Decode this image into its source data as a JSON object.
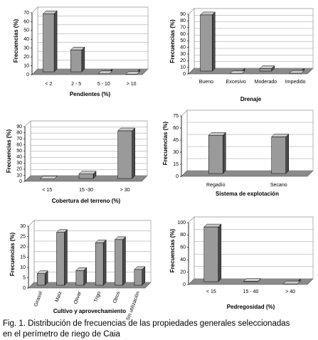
{
  "chart_data": [
    {
      "type": "bar3d",
      "ylabel": "Frecuencias (%)",
      "xlabel": "Pendientes (%)",
      "categories": [
        "< 2",
        "2 - 5",
        "5 - 10",
        "> 10"
      ],
      "values": [
        69,
        28,
        1,
        0.5
      ],
      "ylim": [
        0,
        70
      ],
      "yticks": [
        0,
        10,
        20,
        30,
        40,
        50,
        60,
        70
      ],
      "color": "#9a9a9a",
      "grid": true
    },
    {
      "type": "bar3d",
      "ylabel": "Frecuencias (%)",
      "xlabel": "Drenaje",
      "categories": [
        "Bueno",
        "Excesivo",
        "Moderado",
        "Impedido"
      ],
      "values": [
        89,
        0.5,
        8,
        1
      ],
      "ylim": [
        0,
        90
      ],
      "yticks": [
        0,
        10,
        20,
        30,
        40,
        50,
        60,
        70,
        80,
        90
      ],
      "color": "#9a9a9a",
      "grid": true
    },
    {
      "type": "bar3d",
      "ylabel": "Frecuencias (%)",
      "xlabel": "Cobertura del terreno (%)",
      "categories": [
        "< 15",
        "15 -30",
        "> 30"
      ],
      "values": [
        4,
        12,
        83
      ],
      "ylim": [
        0,
        90
      ],
      "yticks": [
        0,
        10,
        20,
        30,
        40,
        50,
        60,
        70,
        80,
        90
      ],
      "color": "#9a9a9a",
      "grid": true
    },
    {
      "type": "bar3d",
      "ylabel": "Frecuencias (%)",
      "xlabel": "Sistema de explotación",
      "categories": [
        "Regadío",
        "Secano"
      ],
      "values": [
        51,
        49
      ],
      "ylim": [
        0,
        75
      ],
      "yticks": [
        0,
        15,
        30,
        45,
        60,
        75
      ],
      "color": "#9a9a9a",
      "grid": true
    },
    {
      "type": "bar3d",
      "ylabel": "Frecuencias (%)",
      "xlabel": "Cultivo y aprovechamiento",
      "categories": [
        "Girasol",
        "Maíz",
        "Olivar",
        "Trigo",
        "Otros",
        "Sin utilización"
      ],
      "values": [
        7,
        27,
        8.5,
        22,
        23.5,
        9
      ],
      "ylim": [
        0,
        30
      ],
      "yticks": [
        0,
        5,
        10,
        15,
        20,
        25,
        30
      ],
      "color": "#9a9a9a",
      "grid": true,
      "rotate_labels": true
    },
    {
      "type": "bar3d",
      "ylabel": "Frecuencias (%)",
      "xlabel": "Pedregosidad  (%)",
      "categories": [
        "< 15",
        "15 - 40",
        "> 40"
      ],
      "values": [
        93,
        5,
        1
      ],
      "ylim": [
        0,
        100
      ],
      "yticks": [
        0,
        20,
        40,
        60,
        80,
        100
      ],
      "color": "#9a9a9a",
      "grid": true
    }
  ],
  "caption": [
    "Fig. 1. Distribución de frecuencias de las propiedades generales seleccionadas",
    "en el perímetro de riego de Caia"
  ]
}
